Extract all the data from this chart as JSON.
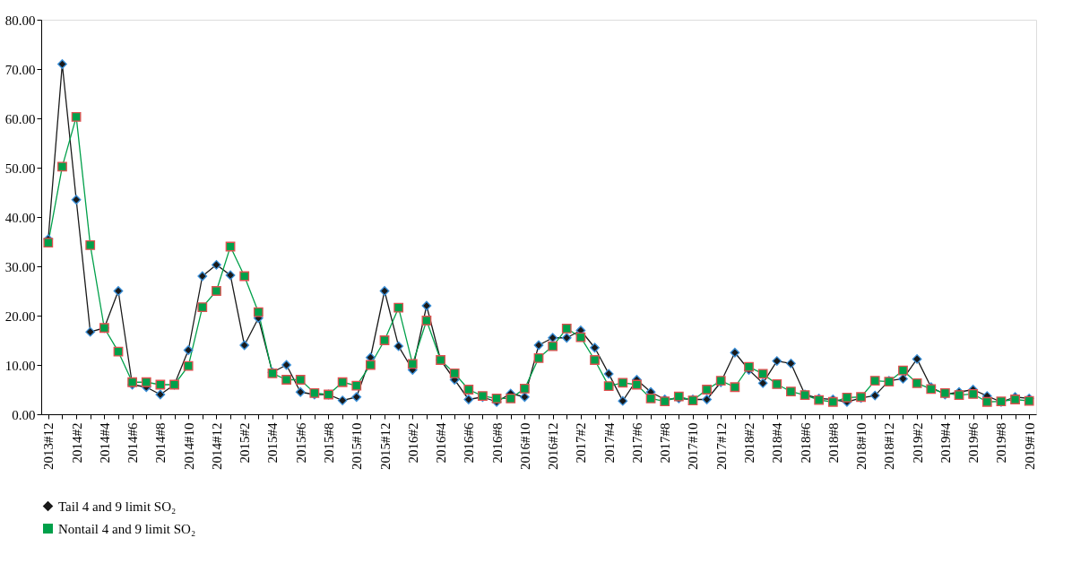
{
  "chart_data": {
    "type": "line",
    "categories": [
      "2013#12",
      null,
      "2014#2",
      null,
      "2014#4",
      null,
      "2014#6",
      null,
      "2014#8",
      null,
      "2014#10",
      null,
      "2014#12",
      null,
      "2015#2",
      null,
      "2015#4",
      null,
      "2015#6",
      null,
      "2015#8",
      null,
      "2015#10",
      null,
      "2015#12",
      null,
      "2016#2",
      null,
      "2016#4",
      null,
      "2016#6",
      null,
      "2016#8",
      null,
      "2016#10",
      null,
      "2016#12",
      null,
      "2017#2",
      null,
      "2017#4",
      null,
      "2017#6",
      null,
      "2017#8",
      null,
      "2017#10",
      null,
      "2017#12",
      null,
      "2018#2",
      null,
      "2018#4",
      null,
      "2018#6",
      null,
      "2018#8",
      null,
      "2018#10",
      null,
      "2018#12",
      null,
      "2019#2",
      null,
      "2019#4",
      null,
      "2019#6",
      null,
      "2019#8",
      null,
      "2019#10"
    ],
    "series": [
      {
        "name": "Tail 4 and 9 limit SO₂",
        "color": "#1a1a1a",
        "marker": "diamond",
        "values": [
          35.5,
          71,
          43.5,
          16.7,
          17.5,
          25,
          6,
          5.5,
          4,
          6,
          13,
          28,
          30.3,
          28.2,
          14,
          19.5,
          8.5,
          10,
          4.5,
          4,
          4,
          2.8,
          3.5,
          11.5,
          25,
          13.8,
          9,
          22,
          11,
          7,
          3,
          3.5,
          2.5,
          4.2,
          3.5,
          14,
          15.5,
          15.5,
          17,
          13.5,
          8.2,
          2.7,
          7,
          4.5,
          3,
          3.2,
          3,
          3,
          6.5,
          12.5,
          9,
          6.3,
          10.8,
          10.3,
          4,
          3.2,
          3,
          2.5,
          3.3,
          3.8,
          6.8,
          7.2,
          11.2,
          5.5,
          4,
          4.5,
          5,
          3.7,
          2.5,
          3.5,
          3.2
        ]
      },
      {
        "name": "Nontail 4 and 9 limit SO₂",
        "color": "#00a04a",
        "marker": "square",
        "values": [
          34.8,
          50.2,
          60.3,
          34.3,
          17.5,
          12.7,
          6.5,
          6.5,
          6,
          6,
          9.8,
          21.7,
          25,
          34,
          28,
          20.7,
          8.3,
          7,
          7,
          4.3,
          4,
          6.5,
          5.8,
          10,
          15,
          21.6,
          10.2,
          19,
          11,
          8.3,
          5,
          3.7,
          3.2,
          3.2,
          5.2,
          11.4,
          13.8,
          17.4,
          15.6,
          11,
          5.7,
          6.4,
          6,
          3.2,
          2.6,
          3.6,
          2.8,
          5,
          6.8,
          5.5,
          9.6,
          8.2,
          6.1,
          4.6,
          3.9,
          2.9,
          2.5,
          3.4,
          3.5,
          6.8,
          6.6,
          8.9,
          6.3,
          5.1,
          4.3,
          3.9,
          4.1,
          2.5,
          2.6,
          3,
          2.7
        ]
      }
    ],
    "ylim": [
      0,
      80
    ],
    "yticks": [
      {
        "value": 0,
        "label": "0.00"
      },
      {
        "value": 10,
        "label": "10.00"
      },
      {
        "value": 20,
        "label": "20.00"
      },
      {
        "value": 30,
        "label": "30.00"
      },
      {
        "value": 40,
        "label": "40.00"
      },
      {
        "value": 50,
        "label": "50.00"
      },
      {
        "value": 60,
        "label": "60.00"
      },
      {
        "value": 70,
        "label": "70.00"
      },
      {
        "value": 80,
        "label": "80.00"
      }
    ],
    "grid": false,
    "legend": "bottom left",
    "line_style": "solid"
  }
}
